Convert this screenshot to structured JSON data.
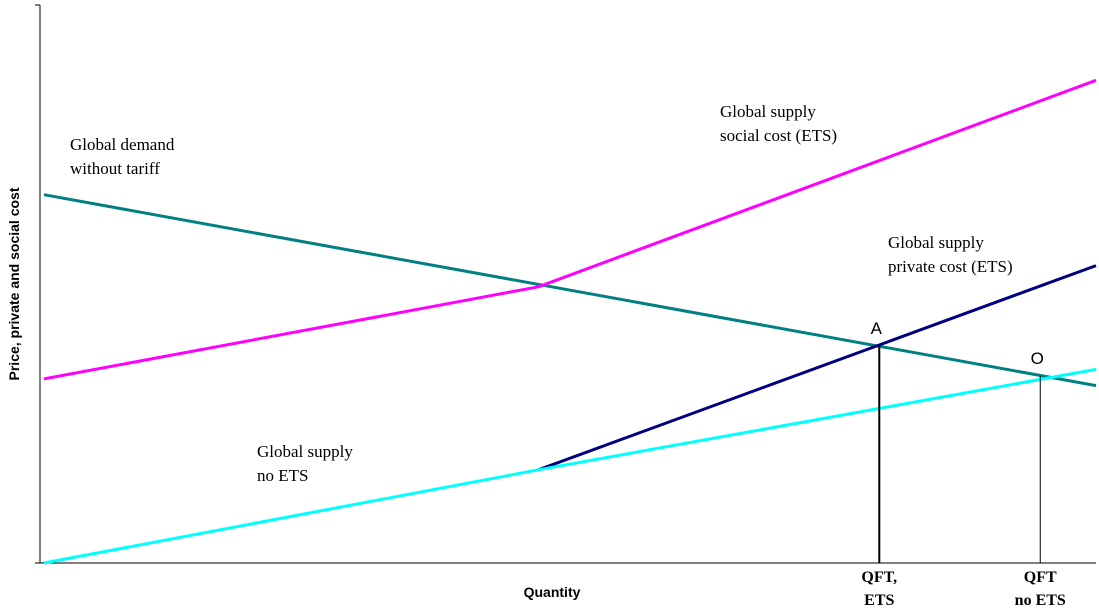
{
  "chart_data": {
    "type": "line",
    "title": "",
    "xlabel": "Quantity",
    "ylabel": "Price, private and social cost",
    "colors": {
      "demand": "#008080",
      "social": "#ff00ff",
      "private": "#000080",
      "no_ets": "#00ffff",
      "axis": "#000000"
    },
    "series": [
      {
        "key": "demand",
        "name": "Global demand without tariff",
        "points": [
          [
            0,
            0.66
          ],
          [
            1,
            0.318
          ]
        ]
      },
      {
        "key": "social",
        "name": "Global supply social cost (ETS)",
        "points": [
          [
            0,
            0.33
          ],
          [
            0.47,
            0.495
          ],
          [
            1,
            0.865
          ]
        ]
      },
      {
        "key": "private",
        "name": "Global supply private cost (ETS)",
        "points": [
          [
            0.47,
            0.167
          ],
          [
            1,
            0.533
          ]
        ]
      },
      {
        "key": "no_ets",
        "name": "Global supply no ETS",
        "points": [
          [
            0,
            0
          ],
          [
            0.47,
            0.167
          ],
          [
            1,
            0.347
          ]
        ]
      }
    ],
    "series_labels": {
      "demand": [
        "Global demand",
        "without tariff"
      ],
      "social": [
        "Global supply",
        "social cost (ETS)"
      ],
      "private": [
        "Global supply",
        "private cost (ETS)"
      ],
      "no_ets": [
        "Global supply",
        "no ETS"
      ]
    },
    "points": [
      {
        "label": "A",
        "x": 0.794,
        "y": 0.389
      },
      {
        "label": "O",
        "x": 0.947,
        "y": 0.335
      }
    ],
    "x_ticks": [
      {
        "x": 0.794,
        "lines": [
          "QFT,",
          "ETS"
        ]
      },
      {
        "x": 0.947,
        "lines": [
          "QFT",
          "no ETS"
        ]
      }
    ],
    "xlim": [
      0,
      1
    ],
    "ylim": [
      0,
      1
    ],
    "grid": false,
    "legend": "none"
  }
}
